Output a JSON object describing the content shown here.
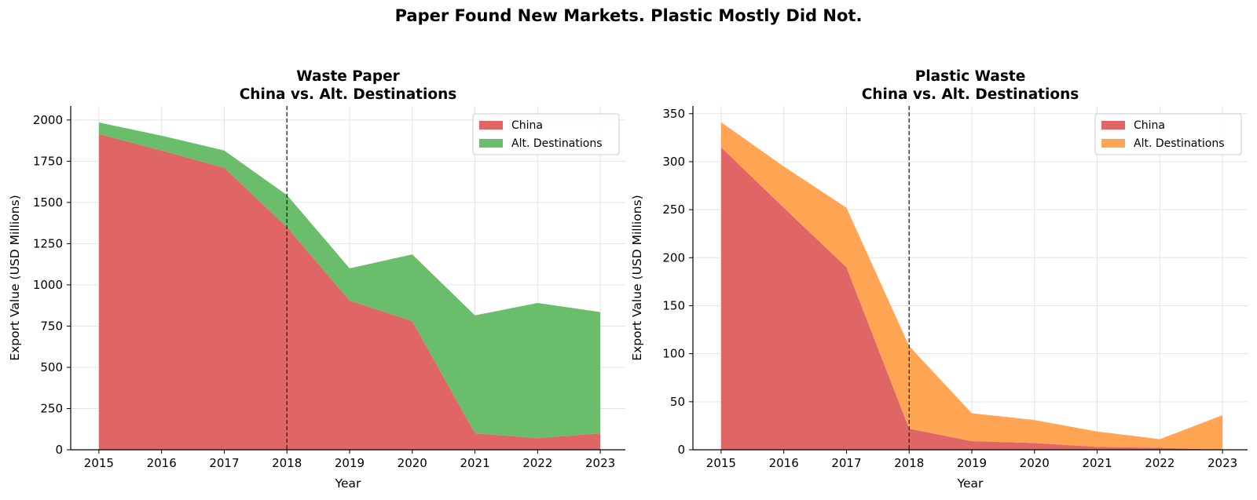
{
  "suptitle": "Paper Found New Markets. Plastic Mostly Did Not.",
  "chart_data": [
    {
      "type": "area",
      "stacked": true,
      "title": "Waste Paper\nChina vs. Alt. Destinations",
      "xlabel": "Year",
      "ylabel": "Export Value (USD Millions)",
      "x": [
        2015,
        2016,
        2017,
        2018,
        2019,
        2020,
        2021,
        2022,
        2023
      ],
      "xlim": [
        2014.55,
        2023.4
      ],
      "ylim": [
        0,
        2085
      ],
      "yticks": [
        0,
        250,
        500,
        750,
        1000,
        1250,
        1500,
        1750,
        2000
      ],
      "vline_x": 2018,
      "grid": true,
      "legend_position": "top-right",
      "series": [
        {
          "name": "China",
          "color": "#e06666",
          "values": [
            1915,
            1815,
            1710,
            1350,
            905,
            780,
            100,
            70,
            100
          ]
        },
        {
          "name": "Alt. Destinations",
          "color": "#6abd6a",
          "values": [
            70,
            90,
            105,
            195,
            195,
            405,
            715,
            820,
            735
          ]
        }
      ]
    },
    {
      "type": "area",
      "stacked": true,
      "title": "Plastic Waste\nChina vs. Alt. Destinations",
      "xlabel": "Year",
      "ylabel": "Export Value (USD Millions)",
      "x": [
        2015,
        2016,
        2017,
        2018,
        2019,
        2020,
        2021,
        2022,
        2023
      ],
      "xlim": [
        2014.55,
        2023.4
      ],
      "ylim": [
        0,
        358
      ],
      "yticks": [
        0,
        50,
        100,
        150,
        200,
        250,
        300,
        350
      ],
      "vline_x": 2018,
      "grid": true,
      "legend_position": "top-right",
      "series": [
        {
          "name": "China",
          "color": "#e06666",
          "values": [
            315,
            252,
            190,
            22,
            9,
            7,
            3,
            2,
            0
          ]
        },
        {
          "name": "Alt. Destinations",
          "color": "#ffa554",
          "values": [
            26,
            43,
            62,
            86,
            29,
            24,
            16,
            9,
            36
          ]
        }
      ]
    }
  ]
}
